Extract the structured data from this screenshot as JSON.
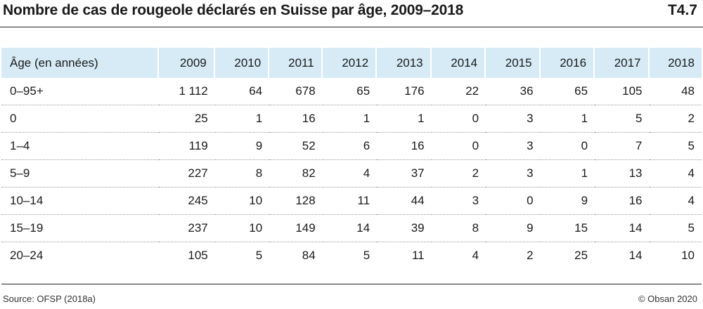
{
  "header": {
    "title": "Nombre de cas de rougeole déclarés en Suisse par âge, 2009–2018",
    "table_id": "T4.7"
  },
  "table": {
    "columns": [
      "Âge (en années)",
      "2009",
      "2010",
      "2011",
      "2012",
      "2013",
      "2014",
      "2015",
      "2016",
      "2017",
      "2018"
    ],
    "rows": [
      [
        "0–95+",
        "1 112",
        "64",
        "678",
        "65",
        "176",
        "22",
        "36",
        "65",
        "105",
        "48"
      ],
      [
        "0",
        "25",
        "1",
        "16",
        "1",
        "1",
        "0",
        "3",
        "1",
        "5",
        "2"
      ],
      [
        "1–4",
        "119",
        "9",
        "52",
        "6",
        "16",
        "0",
        "3",
        "0",
        "7",
        "5"
      ],
      [
        "5–9",
        "227",
        "8",
        "82",
        "4",
        "37",
        "2",
        "3",
        "1",
        "13",
        "4"
      ],
      [
        "10–14",
        "245",
        "10",
        "128",
        "11",
        "44",
        "3",
        "0",
        "9",
        "16",
        "4"
      ],
      [
        "15–19",
        "237",
        "10",
        "149",
        "14",
        "39",
        "8",
        "9",
        "15",
        "14",
        "5"
      ],
      [
        "20–24",
        "105",
        "5",
        "84",
        "5",
        "11",
        "4",
        "2",
        "25",
        "14",
        "10"
      ]
    ]
  },
  "footer": {
    "source": "Source: OFSP (2018a)",
    "copyright": "© Obsan 2020"
  }
}
